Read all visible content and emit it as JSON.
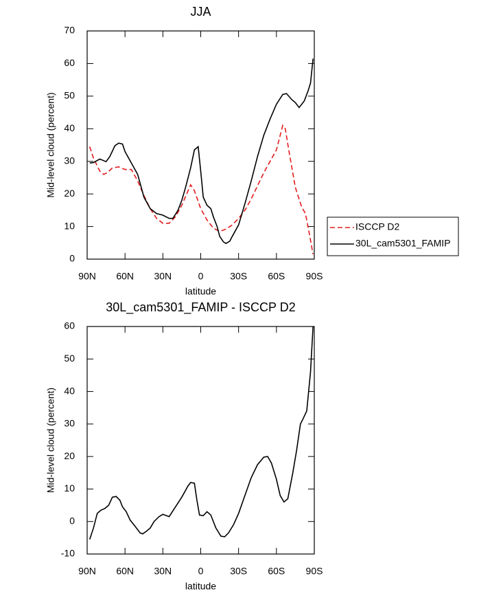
{
  "chart_data": [
    {
      "type": "line",
      "title": "JJA",
      "xlabel": "latitude",
      "ylabel": "Mid-level cloud (percent)",
      "xlim": [
        90,
        -90
      ],
      "xticks": [
        {
          "value": 90,
          "label": "90N"
        },
        {
          "value": 60,
          "label": "60N"
        },
        {
          "value": 30,
          "label": "30N"
        },
        0,
        {
          "value": -30,
          "label": "30S"
        },
        {
          "value": -60,
          "label": "60S"
        },
        {
          "value": -90,
          "label": "90S"
        }
      ],
      "ylim": [
        0,
        70
      ],
      "yticks": [
        0,
        10,
        20,
        30,
        40,
        50,
        60,
        70
      ],
      "legend": "right",
      "series": [
        {
          "name": "ISCCP D2",
          "color": "#e41a1c",
          "style": "dashed",
          "x": [
            88,
            85,
            80,
            77,
            74,
            70,
            65,
            60,
            55,
            50,
            45,
            40,
            35,
            30,
            25,
            20,
            15,
            10,
            8,
            5,
            0,
            -5,
            -10,
            -15,
            -20,
            -25,
            -30,
            -35,
            -40,
            -45,
            -50,
            -55,
            -60,
            -65,
            -67,
            -70,
            -75,
            -80,
            -83,
            -86,
            -89
          ],
          "values": [
            34.5,
            31,
            27,
            26,
            26.5,
            28,
            28.3,
            27.5,
            27.5,
            24,
            19.5,
            15.5,
            12.5,
            11,
            11,
            13,
            16.5,
            21,
            22.8,
            21,
            15.5,
            12,
            9.5,
            8.5,
            9.2,
            10.5,
            12.5,
            15,
            18.5,
            22.5,
            26.5,
            30,
            33.5,
            41,
            40,
            33,
            22,
            16,
            14,
            8,
            1.5
          ]
        },
        {
          "name": "30L_cam5301_FAMIP",
          "color": "#000000",
          "style": "solid",
          "x": [
            88,
            85,
            80,
            75,
            72,
            68,
            65,
            62,
            60,
            55,
            50,
            45,
            40,
            35,
            30,
            25,
            22,
            18,
            15,
            12,
            8,
            5,
            2,
            0,
            -2,
            -5,
            -8,
            -10,
            -13,
            -15,
            -18,
            -20,
            -23,
            -25,
            -30,
            -35,
            -40,
            -45,
            -50,
            -55,
            -60,
            -65,
            -68,
            -72,
            -75,
            -78,
            -82,
            -85,
            -87,
            -89
          ],
          "values": [
            29.5,
            29.6,
            30.7,
            29.9,
            31.5,
            34.8,
            35.6,
            35.3,
            33,
            29.5,
            26,
            19,
            15.5,
            14,
            13.5,
            12.5,
            12.5,
            15,
            18,
            22,
            28,
            33.5,
            34.5,
            27,
            19,
            16.5,
            15.5,
            13,
            10,
            7,
            5.3,
            4.8,
            5.5,
            7,
            10.5,
            17,
            24,
            31.5,
            38,
            43,
            47.5,
            50.5,
            50.8,
            49,
            48,
            46.5,
            48.5,
            51.5,
            54,
            61.5
          ]
        }
      ]
    },
    {
      "type": "line",
      "title": "30L_cam5301_FAMIP - ISCCP D2",
      "xlabel": "latitude",
      "ylabel": "Mid-level cloud (percent)",
      "xlim": [
        90,
        -90
      ],
      "xticks": [
        {
          "value": 90,
          "label": "90N"
        },
        {
          "value": 60,
          "label": "60N"
        },
        {
          "value": 30,
          "label": "30N"
        },
        0,
        {
          "value": -30,
          "label": "30S"
        },
        {
          "value": -60,
          "label": "60S"
        },
        {
          "value": -90,
          "label": "90S"
        }
      ],
      "ylim": [
        -10,
        60
      ],
      "yticks": [
        -10,
        0,
        10,
        20,
        30,
        40,
        50,
        60
      ],
      "series": [
        {
          "color": "#000000",
          "style": "solid",
          "x": [
            88,
            85,
            82,
            79,
            76,
            73,
            70,
            67,
            64,
            62,
            59,
            56,
            52,
            48,
            46,
            43,
            40,
            37,
            33,
            30,
            25,
            20,
            15,
            10,
            8,
            5,
            3,
            1,
            -2,
            -5,
            -8,
            -12,
            -16,
            -19,
            -22,
            -26,
            -30,
            -35,
            -40,
            -45,
            -50,
            -53,
            -56,
            -60,
            -63,
            -66,
            -69,
            -73,
            -76,
            -79,
            -81,
            -84,
            -87,
            -89
          ],
          "values": [
            -5.5,
            -2,
            2.5,
            3.5,
            4,
            5,
            7.5,
            7.7,
            6.5,
            4.5,
            3,
            0.5,
            -1.5,
            -3.5,
            -3.8,
            -3,
            -2,
            0,
            1.5,
            2.2,
            1.5,
            4.5,
            7.5,
            11,
            12,
            11.8,
            6.5,
            2,
            1.8,
            3,
            2,
            -2,
            -4.5,
            -4.7,
            -3.5,
            -1,
            2.5,
            8,
            13.5,
            17.5,
            19.8,
            20,
            18,
            13,
            8,
            6,
            7,
            15,
            22,
            30,
            31.5,
            34,
            46,
            60
          ]
        }
      ]
    }
  ]
}
